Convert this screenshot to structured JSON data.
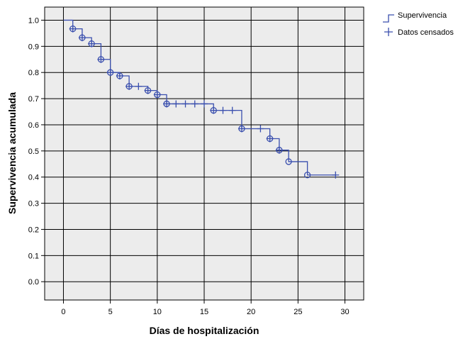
{
  "chart_data": {
    "type": "line",
    "subtype": "kaplan-meier survival step curve",
    "xlabel": "Días de hospitalización",
    "ylabel": "Supervivencia acumulada",
    "xlim": [
      -2,
      32
    ],
    "ylim": [
      -0.07,
      1.05
    ],
    "xticks": [
      0,
      5,
      10,
      15,
      20,
      25,
      30
    ],
    "yticks": [
      0.0,
      0.1,
      0.2,
      0.3,
      0.4,
      0.5,
      0.6,
      0.7,
      0.8,
      0.9,
      1.0
    ],
    "tick_decimals": 1,
    "grid": true,
    "legend_position": "top-right, outside plot",
    "legend": [
      {
        "label": "Supervivencia",
        "symbol": "step-line"
      },
      {
        "label": "Datos censados",
        "symbol": "plus"
      }
    ],
    "colors": {
      "series": "#3a4fae",
      "plot_background": "#ececec",
      "grid": "#000000"
    },
    "series": [
      {
        "name": "Supervivencia",
        "steps": [
          {
            "x": 0,
            "y": 1.0
          },
          {
            "x": 1,
            "y": 0.967
          },
          {
            "x": 2,
            "y": 0.933
          },
          {
            "x": 3,
            "y": 0.91
          },
          {
            "x": 4,
            "y": 0.85
          },
          {
            "x": 5,
            "y": 0.8
          },
          {
            "x": 6,
            "y": 0.787
          },
          {
            "x": 7,
            "y": 0.747
          },
          {
            "x": 9,
            "y": 0.731
          },
          {
            "x": 10,
            "y": 0.715
          },
          {
            "x": 11,
            "y": 0.68
          },
          {
            "x": 16,
            "y": 0.655
          },
          {
            "x": 19,
            "y": 0.585
          },
          {
            "x": 22,
            "y": 0.547
          },
          {
            "x": 23,
            "y": 0.503
          },
          {
            "x": 24,
            "y": 0.459
          },
          {
            "x": 26,
            "y": 0.408
          }
        ],
        "end_x": 29
      },
      {
        "name": "Datos censados",
        "points": [
          {
            "x": 1,
            "y": 0.967
          },
          {
            "x": 2,
            "y": 0.933
          },
          {
            "x": 3,
            "y": 0.91
          },
          {
            "x": 4,
            "y": 0.85
          },
          {
            "x": 5,
            "y": 0.8
          },
          {
            "x": 6,
            "y": 0.787
          },
          {
            "x": 7,
            "y": 0.747
          },
          {
            "x": 8,
            "y": 0.747
          },
          {
            "x": 9,
            "y": 0.731
          },
          {
            "x": 10,
            "y": 0.715
          },
          {
            "x": 11,
            "y": 0.68
          },
          {
            "x": 12,
            "y": 0.68
          },
          {
            "x": 13,
            "y": 0.68
          },
          {
            "x": 14,
            "y": 0.68
          },
          {
            "x": 15,
            "y": 0.68
          },
          {
            "x": 16,
            "y": 0.655
          },
          {
            "x": 17,
            "y": 0.655
          },
          {
            "x": 18,
            "y": 0.655
          },
          {
            "x": 19,
            "y": 0.585
          },
          {
            "x": 21,
            "y": 0.585
          },
          {
            "x": 22,
            "y": 0.547
          },
          {
            "x": 23,
            "y": 0.503
          },
          {
            "x": 29,
            "y": 0.408
          }
        ]
      },
      {
        "name": "event markers",
        "points": [
          {
            "x": 1,
            "y": 0.967
          },
          {
            "x": 2,
            "y": 0.933
          },
          {
            "x": 3,
            "y": 0.91
          },
          {
            "x": 4,
            "y": 0.85
          },
          {
            "x": 5,
            "y": 0.8
          },
          {
            "x": 6,
            "y": 0.787
          },
          {
            "x": 7,
            "y": 0.747
          },
          {
            "x": 9,
            "y": 0.731
          },
          {
            "x": 10,
            "y": 0.715
          },
          {
            "x": 11,
            "y": 0.68
          },
          {
            "x": 16,
            "y": 0.655
          },
          {
            "x": 19,
            "y": 0.585
          },
          {
            "x": 22,
            "y": 0.547
          },
          {
            "x": 23,
            "y": 0.503
          },
          {
            "x": 24,
            "y": 0.459
          },
          {
            "x": 26,
            "y": 0.408
          }
        ]
      }
    ]
  }
}
